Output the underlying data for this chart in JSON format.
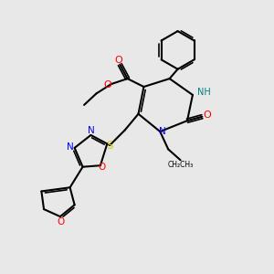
{
  "background_color": "#e8e8e8",
  "atom_colors": {
    "C": "#000000",
    "N": "#0000ff",
    "O": "#ff0000",
    "S": "#cccc00",
    "H": "#008080"
  },
  "title": "",
  "figsize": [
    3.0,
    3.0
  ],
  "dpi": 100
}
